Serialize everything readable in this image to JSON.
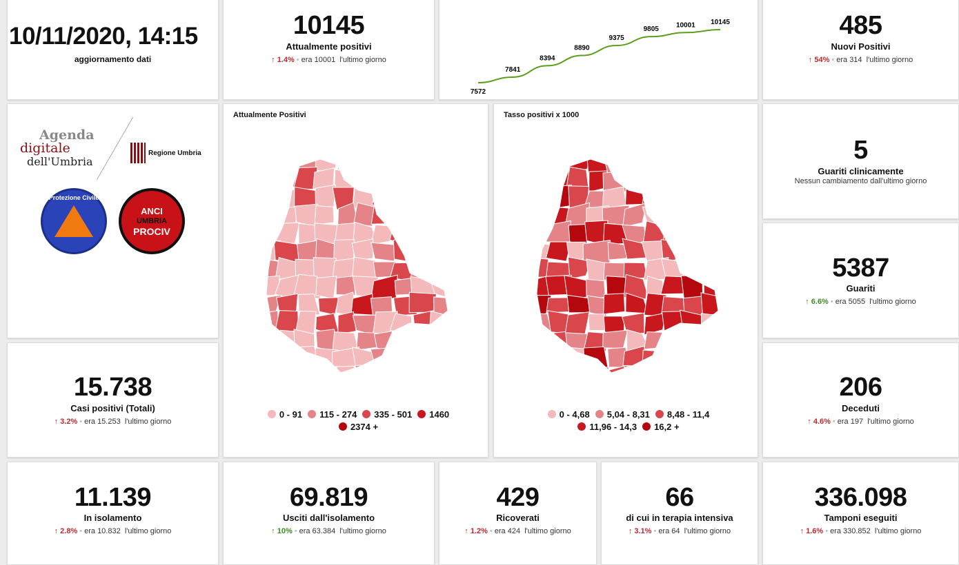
{
  "update": {
    "datetime": "10/11/2020, 14:15",
    "label": "aggiornamento dati"
  },
  "stats": {
    "attualmente": {
      "value": "10145",
      "label": "Attualmente positivi",
      "pct": "1.4%",
      "dir": "up",
      "prev": "era 10001",
      "tail": "l'ultimo giorno"
    },
    "nuovi": {
      "value": "485",
      "label": "Nuovi Positivi",
      "pct": "54%",
      "dir": "up",
      "prev": "era 314",
      "tail": "l'ultimo giorno"
    },
    "guariti_clin": {
      "value": "5",
      "label": "Guariti clinicamente",
      "note": "Nessun cambiamento dall'ultimo giorno"
    },
    "guariti": {
      "value": "5387",
      "label": "Guariti",
      "pct": "6.6%",
      "dir": "up",
      "prev": "era 5055",
      "tail": "l'ultimo giorno"
    },
    "casi": {
      "value": "15.738",
      "label": "Casi positivi (Totali)",
      "pct": "3.2%",
      "dir": "up",
      "prev": "era 15.253",
      "tail": "l'ultimo giorno"
    },
    "deceduti": {
      "value": "206",
      "label": "Deceduti",
      "pct": "4.6%",
      "dir": "up",
      "prev": "era 197",
      "tail": "l'ultimo giorno"
    },
    "isolamento": {
      "value": "11.139",
      "label": "In isolamento",
      "pct": "2.8%",
      "dir": "up",
      "prev": "era 10.832",
      "tail": "l'ultimo giorno"
    },
    "usciti": {
      "value": "69.819",
      "label": "Usciti dall'isolamento",
      "pct": "10%",
      "dir": "up",
      "prev": "era 63.384",
      "tail": "l'ultimo giorno"
    },
    "ricoverati": {
      "value": "429",
      "label": "Ricoverati",
      "pct": "1.2%",
      "dir": "up",
      "prev": "era 424",
      "tail": "l'ultimo giorno"
    },
    "ti": {
      "value": "66",
      "label": "di cui in terapia intensiva",
      "pct": "3.1%",
      "dir": "up",
      "prev": "era 64",
      "tail": "l'ultimo giorno"
    },
    "tamponi": {
      "value": "336.098",
      "label": "Tamponi eseguiti",
      "pct": "1.6%",
      "dir": "up",
      "prev": "era 330.852",
      "tail": "l'ultimo giorno"
    }
  },
  "arrow": "↑",
  "logos": {
    "agenda1": "Agenda",
    "agenda2": "digitale",
    "agenda3": "dell'Umbria",
    "regione": "Regione Umbria",
    "protezione": "Protezione Civile",
    "anci1": "ANCI",
    "anci2": "UMBRIA",
    "anci3": "PROCIV"
  },
  "chart_data": {
    "type": "line",
    "values": [
      7572,
      7841,
      8394,
      8890,
      9375,
      9805,
      10001,
      10145
    ],
    "color": "#5a9e1a"
  },
  "maps": [
    {
      "title": "Attualmente Positivi",
      "legend": [
        {
          "label": "0 - 91",
          "color": "#f4b9bb"
        },
        {
          "label": "115 - 274",
          "color": "#e58488"
        },
        {
          "label": "335 - 501",
          "color": "#d9474c"
        },
        {
          "label": "1460",
          "color": "#c8181e"
        },
        {
          "label": "2374 +",
          "color": "#b5080e"
        }
      ]
    },
    {
      "title": "Tasso positivi x 1000",
      "legend": [
        {
          "label": "0 - 4,68",
          "color": "#f4b9bb"
        },
        {
          "label": "5,04 - 8,31",
          "color": "#e58488"
        },
        {
          "label": "8,48 - 11,4",
          "color": "#d9474c"
        },
        {
          "label": "11,96 - 14,3",
          "color": "#c8181e"
        },
        {
          "label": "16,2 +",
          "color": "#b5080e"
        }
      ]
    }
  ]
}
